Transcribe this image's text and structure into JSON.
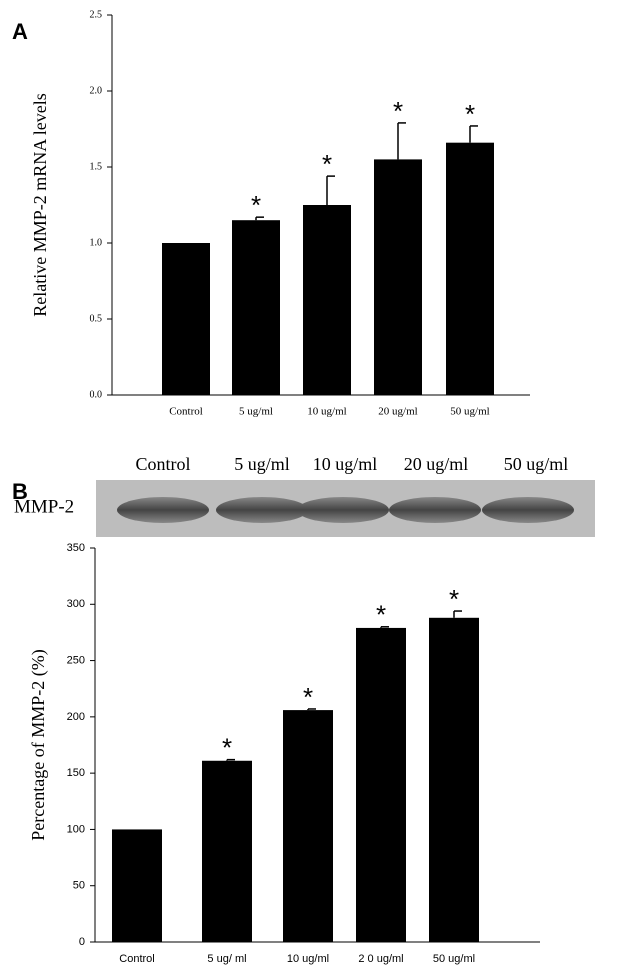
{
  "chart_data": [
    {
      "type": "bar",
      "panel_label": "A",
      "ylabel": "Relative MMP-2 mRNA levels",
      "categories": [
        "Control",
        "5 ug/ml",
        "10 ug/ml",
        "20 ug/ml",
        "50 ug/ml"
      ],
      "values": [
        1.0,
        1.15,
        1.25,
        1.55,
        1.66
      ],
      "errors": [
        null,
        0.02,
        0.19,
        0.24,
        0.11
      ],
      "markers": [
        null,
        "*",
        "*",
        "*",
        "*"
      ],
      "color": "#000000",
      "ylim": [
        0,
        2.5
      ],
      "yticks": [
        {
          "value": 0,
          "label": "0.0"
        },
        {
          "value": 0.5,
          "label": "0.5"
        },
        {
          "value": 1,
          "label": "1.0"
        },
        {
          "value": 1.5,
          "label": "1.5"
        },
        {
          "value": 2,
          "label": "2.0"
        },
        {
          "value": 2.5,
          "label": "2.5"
        }
      ]
    },
    {
      "type": "bar",
      "panel_label": "B",
      "ylabel": "Percentage of MMP-2 (%)",
      "categories": [
        "Control",
        "5 ug/ ml",
        "10 ug/ml",
        "2 0 ug/ml",
        "50 ug/ml"
      ],
      "values": [
        100,
        161,
        206,
        279,
        288
      ],
      "errors": [
        null,
        1,
        1,
        1,
        6
      ],
      "markers": [
        null,
        "*",
        "*",
        "*",
        "*"
      ],
      "color": "#000000",
      "ylim": [
        0,
        350
      ],
      "yticks": [
        0,
        50,
        100,
        150,
        200,
        250,
        300,
        350
      ]
    }
  ],
  "blot": {
    "label": "MMP-2",
    "lanes": [
      "Control",
      "5 ug/ml",
      "10 ug/ml",
      "20 ug/ml",
      "50 ug/ml"
    ]
  }
}
